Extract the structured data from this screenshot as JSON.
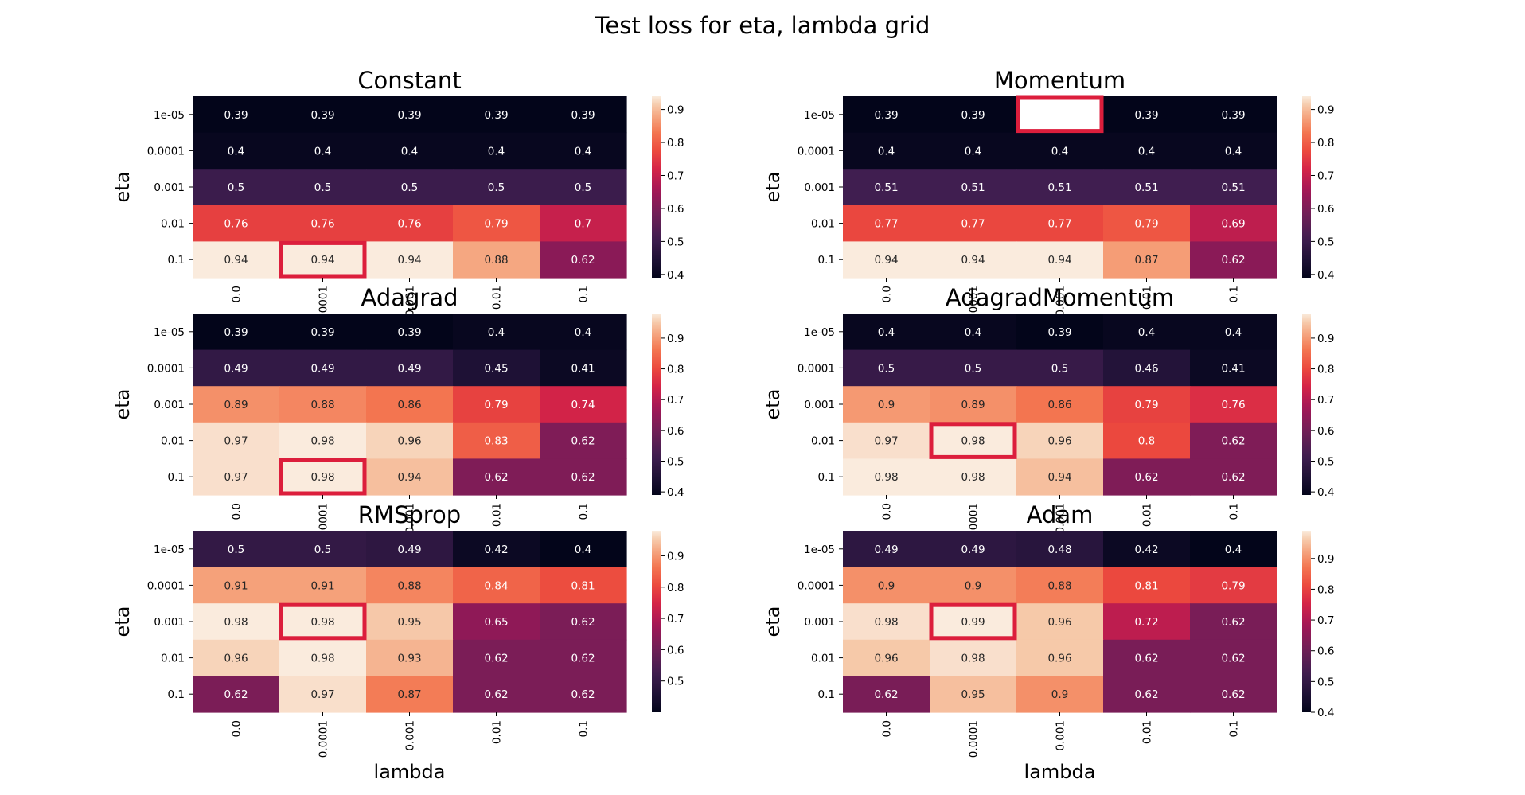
{
  "figure": {
    "suptitle": "Test loss for eta, lambda grid"
  },
  "chart_data": [
    {
      "type": "heatmap",
      "title": "Constant",
      "ylabel": "eta",
      "xlabel": "",
      "x_ticks": [
        "0.0",
        "0.0001",
        "0.001",
        "0.01",
        "0.1"
      ],
      "y_ticks": [
        "1e-05",
        "0.0001",
        "0.001",
        "0.01",
        "0.1"
      ],
      "values": [
        [
          0.39,
          0.39,
          0.39,
          0.39,
          0.39
        ],
        [
          0.4,
          0.4,
          0.4,
          0.4,
          0.4
        ],
        [
          0.5,
          0.5,
          0.5,
          0.5,
          0.5
        ],
        [
          0.76,
          0.76,
          0.76,
          0.79,
          0.7
        ],
        [
          0.94,
          0.94,
          0.94,
          0.88,
          0.62
        ]
      ],
      "colorbar_ticks": [
        "0.4",
        "0.5",
        "0.6",
        "0.7",
        "0.8",
        "0.9"
      ],
      "vmin": 0.39,
      "vmax": 0.94,
      "highlight": {
        "row": 4,
        "col": 1
      },
      "hidden_cell": null
    },
    {
      "type": "heatmap",
      "title": "Momentum",
      "ylabel": "eta",
      "xlabel": "",
      "x_ticks": [
        "0.0",
        "0.0001",
        "0.001",
        "0.01",
        "0.1"
      ],
      "y_ticks": [
        "1e-05",
        "0.0001",
        "0.001",
        "0.01",
        "0.1"
      ],
      "values": [
        [
          0.39,
          0.39,
          null,
          0.39,
          0.39
        ],
        [
          0.4,
          0.4,
          0.4,
          0.4,
          0.4
        ],
        [
          0.51,
          0.51,
          0.51,
          0.51,
          0.51
        ],
        [
          0.77,
          0.77,
          0.77,
          0.79,
          0.69
        ],
        [
          0.94,
          0.94,
          0.94,
          0.87,
          0.62
        ]
      ],
      "colorbar_ticks": [
        "0.4",
        "0.5",
        "0.6",
        "0.7",
        "0.8",
        "0.9"
      ],
      "vmin": 0.39,
      "vmax": 0.94,
      "highlight": {
        "row": 0,
        "col": 2
      },
      "hidden_cell": {
        "row": 0,
        "col": 2
      }
    },
    {
      "type": "heatmap",
      "title": "Adagrad",
      "ylabel": "eta",
      "xlabel": "",
      "x_ticks": [
        "0.0",
        "0.0001",
        "0.001",
        "0.01",
        "0.1"
      ],
      "y_ticks": [
        "1e-05",
        "0.0001",
        "0.001",
        "0.01",
        "0.1"
      ],
      "values": [
        [
          0.39,
          0.39,
          0.39,
          0.4,
          0.4
        ],
        [
          0.49,
          0.49,
          0.49,
          0.45,
          0.41
        ],
        [
          0.89,
          0.88,
          0.86,
          0.79,
          0.74
        ],
        [
          0.97,
          0.98,
          0.96,
          0.83,
          0.62
        ],
        [
          0.97,
          0.98,
          0.94,
          0.62,
          0.62
        ]
      ],
      "colorbar_ticks": [
        "0.4",
        "0.5",
        "0.6",
        "0.7",
        "0.8",
        "0.9"
      ],
      "vmin": 0.39,
      "vmax": 0.98,
      "highlight": {
        "row": 4,
        "col": 1
      },
      "hidden_cell": null
    },
    {
      "type": "heatmap",
      "title": "AdagradMomentum",
      "ylabel": "eta",
      "xlabel": "",
      "x_ticks": [
        "0.0",
        "0.0001",
        "0.001",
        "0.01",
        "0.1"
      ],
      "y_ticks": [
        "1e-05",
        "0.0001",
        "0.001",
        "0.01",
        "0.1"
      ],
      "values": [
        [
          0.4,
          0.4,
          0.39,
          0.4,
          0.4
        ],
        [
          0.5,
          0.5,
          0.5,
          0.46,
          0.41
        ],
        [
          0.9,
          0.89,
          0.86,
          0.79,
          0.76
        ],
        [
          0.97,
          0.98,
          0.96,
          0.8,
          0.62
        ],
        [
          0.98,
          0.98,
          0.94,
          0.62,
          0.62
        ]
      ],
      "colorbar_ticks": [
        "0.4",
        "0.5",
        "0.6",
        "0.7",
        "0.8",
        "0.9"
      ],
      "vmin": 0.39,
      "vmax": 0.98,
      "highlight": {
        "row": 3,
        "col": 1
      },
      "hidden_cell": null
    },
    {
      "type": "heatmap",
      "title": "RMSprop",
      "ylabel": "eta",
      "xlabel": "lambda",
      "x_ticks": [
        "0.0",
        "0.0001",
        "0.001",
        "0.01",
        "0.1"
      ],
      "y_ticks": [
        "1e-05",
        "0.0001",
        "0.001",
        "0.01",
        "0.1"
      ],
      "values": [
        [
          0.5,
          0.5,
          0.49,
          0.42,
          0.4
        ],
        [
          0.91,
          0.91,
          0.88,
          0.84,
          0.81
        ],
        [
          0.98,
          0.98,
          0.95,
          0.65,
          0.62
        ],
        [
          0.96,
          0.98,
          0.93,
          0.62,
          0.62
        ],
        [
          0.62,
          0.97,
          0.87,
          0.62,
          0.62
        ]
      ],
      "colorbar_ticks": [
        "0.5",
        "0.6",
        "0.7",
        "0.8",
        "0.9"
      ],
      "vmin": 0.4,
      "vmax": 0.98,
      "highlight": {
        "row": 2,
        "col": 1
      },
      "hidden_cell": null
    },
    {
      "type": "heatmap",
      "title": "Adam",
      "ylabel": "eta",
      "xlabel": "lambda",
      "x_ticks": [
        "0.0",
        "0.0001",
        "0.001",
        "0.01",
        "0.1"
      ],
      "y_ticks": [
        "1e-05",
        "0.0001",
        "0.001",
        "0.01",
        "0.1"
      ],
      "values": [
        [
          0.49,
          0.49,
          0.48,
          0.42,
          0.4
        ],
        [
          0.9,
          0.9,
          0.88,
          0.81,
          0.79
        ],
        [
          0.98,
          0.99,
          0.96,
          0.72,
          0.62
        ],
        [
          0.96,
          0.98,
          0.96,
          0.62,
          0.62
        ],
        [
          0.62,
          0.95,
          0.9,
          0.62,
          0.62
        ]
      ],
      "colorbar_ticks": [
        "0.4",
        "0.5",
        "0.6",
        "0.7",
        "0.8",
        "0.9"
      ],
      "vmin": 0.4,
      "vmax": 0.99,
      "highlight": {
        "row": 2,
        "col": 1
      },
      "hidden_cell": null
    }
  ],
  "colors": {
    "highlight_border": "#dc1e3c",
    "colormap": "rocket"
  }
}
